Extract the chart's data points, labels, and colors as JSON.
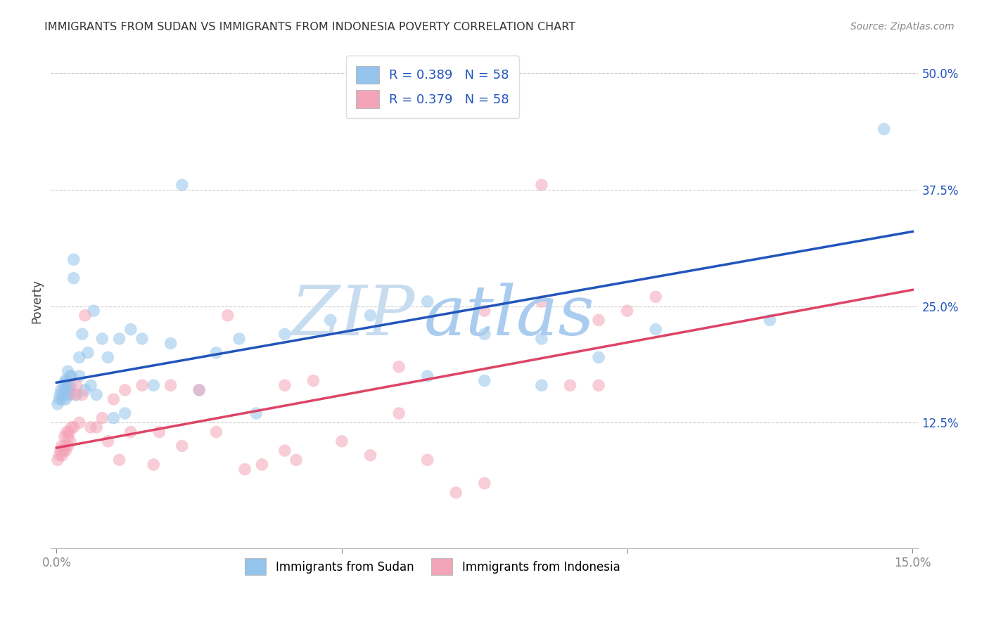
{
  "title": "IMMIGRANTS FROM SUDAN VS IMMIGRANTS FROM INDONESIA POVERTY CORRELATION CHART",
  "source": "Source: ZipAtlas.com",
  "ylabel": "Poverty",
  "xlim": [
    -0.001,
    0.151
  ],
  "ylim": [
    -0.01,
    0.52
  ],
  "xticks": [
    0.0,
    0.05,
    0.1,
    0.15
  ],
  "xticklabels": [
    "0.0%",
    "",
    "",
    "15.0%"
  ],
  "yticks": [
    0.0,
    0.125,
    0.25,
    0.375,
    0.5
  ],
  "yticklabels": [
    "",
    "12.5%",
    "25.0%",
    "37.5%",
    "50.0%"
  ],
  "legend_label1": "Immigrants from Sudan",
  "legend_label2": "Immigrants from Indonesia",
  "R1": 0.389,
  "N1": 58,
  "R2": 0.379,
  "N2": 58,
  "color_sudan": "#94C4EC",
  "color_indonesia": "#F4A4B8",
  "color_line_sudan": "#2255BB",
  "color_line_indonesia": "#DD4466",
  "trendline_sudan": [
    0.168,
    1.08
  ],
  "trendline_indonesia": [
    0.098,
    1.13
  ],
  "sudan_x": [
    0.0002,
    0.0005,
    0.0006,
    0.0008,
    0.001,
    0.0012,
    0.0013,
    0.0015,
    0.0015,
    0.0016,
    0.0017,
    0.0018,
    0.0019,
    0.002,
    0.002,
    0.0022,
    0.0023,
    0.0024,
    0.0025,
    0.0026,
    0.003,
    0.003,
    0.0035,
    0.004,
    0.004,
    0.0045,
    0.005,
    0.0055,
    0.006,
    0.0065,
    0.007,
    0.008,
    0.009,
    0.01,
    0.011,
    0.012,
    0.013,
    0.015,
    0.017,
    0.02,
    0.022,
    0.025,
    0.028,
    0.032,
    0.035,
    0.04,
    0.048,
    0.055,
    0.065,
    0.075,
    0.085,
    0.095,
    0.105,
    0.085,
    0.075,
    0.065,
    0.125,
    0.145
  ],
  "sudan_y": [
    0.145,
    0.15,
    0.155,
    0.16,
    0.15,
    0.155,
    0.165,
    0.16,
    0.17,
    0.15,
    0.16,
    0.17,
    0.155,
    0.165,
    0.18,
    0.16,
    0.155,
    0.175,
    0.165,
    0.175,
    0.28,
    0.3,
    0.155,
    0.175,
    0.195,
    0.22,
    0.16,
    0.2,
    0.165,
    0.245,
    0.155,
    0.215,
    0.195,
    0.13,
    0.215,
    0.135,
    0.225,
    0.215,
    0.165,
    0.21,
    0.38,
    0.16,
    0.2,
    0.215,
    0.135,
    0.22,
    0.235,
    0.24,
    0.255,
    0.22,
    0.215,
    0.195,
    0.225,
    0.165,
    0.17,
    0.175,
    0.235,
    0.44
  ],
  "indonesia_x": [
    0.0002,
    0.0005,
    0.0007,
    0.0009,
    0.001,
    0.0012,
    0.0014,
    0.0015,
    0.0016,
    0.0018,
    0.002,
    0.002,
    0.0022,
    0.0024,
    0.0026,
    0.003,
    0.0032,
    0.0035,
    0.004,
    0.0045,
    0.005,
    0.006,
    0.007,
    0.008,
    0.009,
    0.01,
    0.011,
    0.012,
    0.013,
    0.015,
    0.017,
    0.018,
    0.02,
    0.022,
    0.025,
    0.028,
    0.03,
    0.033,
    0.036,
    0.04,
    0.042,
    0.045,
    0.05,
    0.055,
    0.06,
    0.065,
    0.07,
    0.075,
    0.085,
    0.095,
    0.04,
    0.09,
    0.1,
    0.06,
    0.085,
    0.075,
    0.095,
    0.105
  ],
  "indonesia_y": [
    0.085,
    0.09,
    0.095,
    0.1,
    0.09,
    0.095,
    0.11,
    0.1,
    0.095,
    0.115,
    0.1,
    0.11,
    0.115,
    0.105,
    0.12,
    0.12,
    0.155,
    0.165,
    0.125,
    0.155,
    0.24,
    0.12,
    0.12,
    0.13,
    0.105,
    0.15,
    0.085,
    0.16,
    0.115,
    0.165,
    0.08,
    0.115,
    0.165,
    0.1,
    0.16,
    0.115,
    0.24,
    0.075,
    0.08,
    0.095,
    0.085,
    0.17,
    0.105,
    0.09,
    0.135,
    0.085,
    0.05,
    0.06,
    0.38,
    0.235,
    0.165,
    0.165,
    0.245,
    0.185,
    0.255,
    0.245,
    0.165,
    0.26
  ]
}
